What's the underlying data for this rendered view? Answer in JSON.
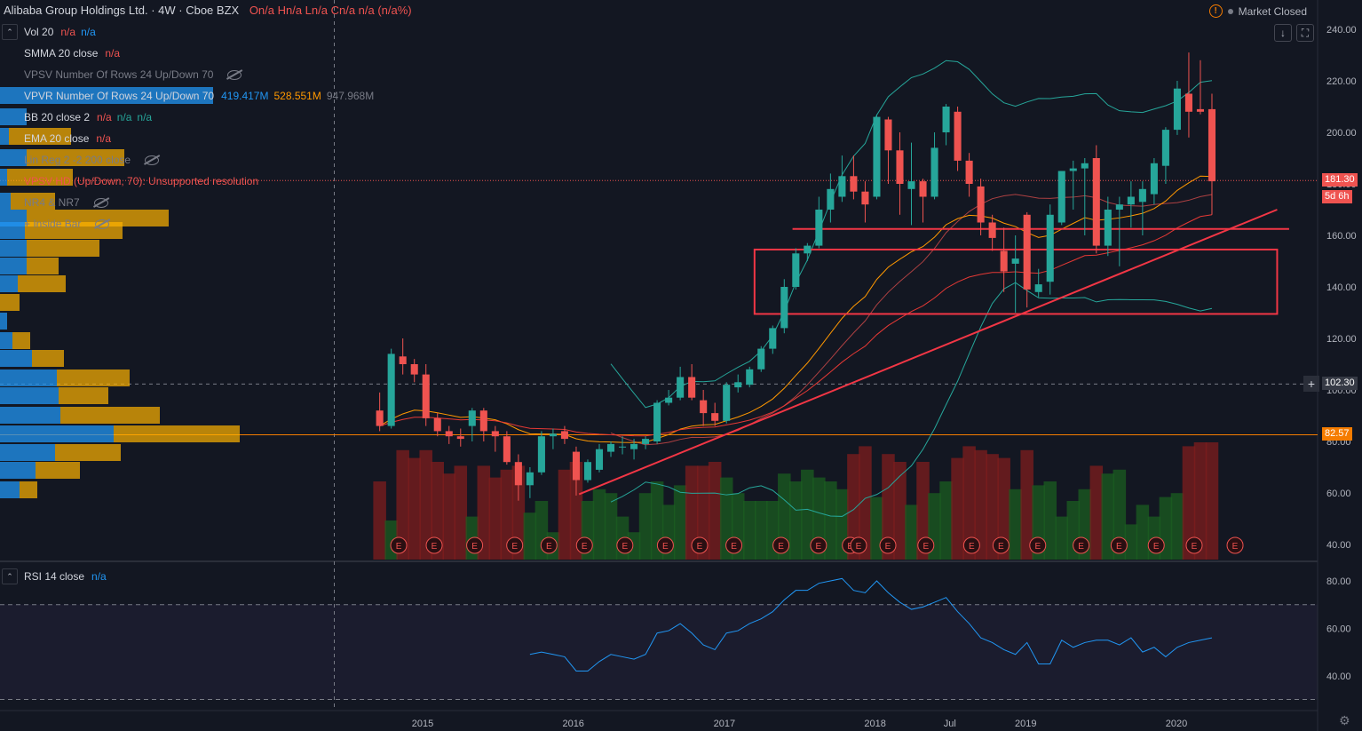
{
  "header": {
    "title": "Alibaba Group Holdings Ltd. · 4W · Cboe BZX",
    "ohlc": "On/a Hn/a Ln/a Cn/a n/a (n/a%)",
    "market_status": "Market Closed"
  },
  "indicators": [
    {
      "name": "Vol 20",
      "values": [
        "n/a",
        "n/a"
      ],
      "colors": [
        "#ef5350",
        "#2196f3"
      ],
      "dim": false,
      "hidden": false
    },
    {
      "name": "SMMA 20 close",
      "values": [
        "n/a"
      ],
      "colors": [
        "#ef5350"
      ],
      "dim": false,
      "hidden": false
    },
    {
      "name": "VPSV Number Of Rows 24 Up/Down 70",
      "values": [],
      "colors": [],
      "dim": true,
      "hidden": true
    },
    {
      "name": "VPVR Number Of Rows 24 Up/Down 70",
      "values": [
        "419.417M",
        "528.551M",
        "947.968M"
      ],
      "colors": [
        "#2196f3",
        "#ff9800",
        "#787b86"
      ],
      "dim": false,
      "hidden": false
    },
    {
      "name": "BB 20 close 2",
      "values": [
        "n/a",
        "n/a",
        "n/a"
      ],
      "colors": [
        "#ef5350",
        "#26a69a",
        "#26a69a"
      ],
      "dim": false,
      "hidden": false
    },
    {
      "name": "EMA 20 close",
      "values": [
        "n/a"
      ],
      "colors": [
        "#ef5350"
      ],
      "dim": false,
      "hidden": false
    },
    {
      "name": "Lin Reg 2 -2 200 close",
      "values": [],
      "colors": [],
      "dim": true,
      "hidden": true
    },
    {
      "name": "VPSV HD (Up/Down, 70): Unsupported resolution",
      "values": [],
      "colors": [],
      "dim": false,
      "error": true,
      "hidden": false
    },
    {
      "name": "NR4 & NR7",
      "values": [],
      "colors": [],
      "dim": true,
      "hidden": true
    },
    {
      "name": "+ Inside Bar",
      "values": [],
      "colors": [],
      "dim": true,
      "hidden": true
    }
  ],
  "rsi_legend": {
    "name": "RSI 14 close",
    "value": "n/a"
  },
  "price_labels": {
    "last": "181.30",
    "countdown": "5d 6h",
    "crosshair": "102.30",
    "level": "82.57"
  },
  "earnings_marker": "E",
  "colors": {
    "up": "#26a69a",
    "down": "#ef5350",
    "background": "#131722",
    "rsi": "#2196f3",
    "accent": "#2962ff"
  },
  "chart_data": [
    {
      "type": "candlestick",
      "title": "Alibaba Group Holdings Ltd. · 4W · Cboe BZX",
      "x_ticks": [
        "2015",
        "2016",
        "2017",
        "2018",
        "Jul",
        "2019",
        "2020"
      ],
      "x_tick_dates": [
        "2015-01-01",
        "2016-01-01",
        "2017-01-01",
        "2018-01-01",
        "2018-07-01",
        "2019-01-01",
        "2020-01-01"
      ],
      "y_ticks": [
        40,
        60,
        80,
        100,
        120,
        140,
        160,
        180,
        200,
        220,
        240
      ],
      "ylim": [
        35,
        248
      ],
      "candles": [
        {
          "d": "2014-09-19",
          "o": 92,
          "h": 99,
          "l": 84,
          "c": 86
        },
        {
          "d": "2014-10-17",
          "o": 86,
          "h": 116,
          "l": 85,
          "c": 114
        },
        {
          "d": "2014-11-14",
          "o": 113,
          "h": 120,
          "l": 106,
          "c": 110
        },
        {
          "d": "2014-12-12",
          "o": 110,
          "h": 112,
          "l": 103,
          "c": 106
        },
        {
          "d": "2015-01-09",
          "o": 106,
          "h": 110,
          "l": 86,
          "c": 89
        },
        {
          "d": "2015-02-06",
          "o": 89,
          "h": 91,
          "l": 82,
          "c": 84
        },
        {
          "d": "2015-03-06",
          "o": 84,
          "h": 86,
          "l": 79,
          "c": 82
        },
        {
          "d": "2015-04-03",
          "o": 82,
          "h": 85,
          "l": 78,
          "c": 81
        },
        {
          "d": "2015-05-01",
          "o": 86,
          "h": 93,
          "l": 80,
          "c": 92
        },
        {
          "d": "2015-05-29",
          "o": 92,
          "h": 93,
          "l": 80,
          "c": 84
        },
        {
          "d": "2015-06-26",
          "o": 84,
          "h": 86,
          "l": 76,
          "c": 82
        },
        {
          "d": "2015-07-24",
          "o": 82,
          "h": 84,
          "l": 71,
          "c": 72
        },
        {
          "d": "2015-08-21",
          "o": 72,
          "h": 75,
          "l": 57,
          "c": 63
        },
        {
          "d": "2015-09-18",
          "o": 63,
          "h": 70,
          "l": 58,
          "c": 68
        },
        {
          "d": "2015-10-16",
          "o": 68,
          "h": 84,
          "l": 67,
          "c": 82
        },
        {
          "d": "2015-11-13",
          "o": 82,
          "h": 85,
          "l": 77,
          "c": 83
        },
        {
          "d": "2015-12-11",
          "o": 84,
          "h": 86,
          "l": 79,
          "c": 81
        },
        {
          "d": "2016-01-08",
          "o": 76,
          "h": 78,
          "l": 59,
          "c": 65
        },
        {
          "d": "2016-02-05",
          "o": 65,
          "h": 73,
          "l": 64,
          "c": 72
        },
        {
          "d": "2016-03-04",
          "o": 69,
          "h": 79,
          "l": 68,
          "c": 77
        },
        {
          "d": "2016-04-01",
          "o": 76,
          "h": 80,
          "l": 74,
          "c": 79
        },
        {
          "d": "2016-04-29",
          "o": 78,
          "h": 82,
          "l": 75,
          "c": 78
        },
        {
          "d": "2016-05-27",
          "o": 77,
          "h": 81,
          "l": 73,
          "c": 79
        },
        {
          "d": "2016-06-24",
          "o": 79,
          "h": 82,
          "l": 77,
          "c": 81
        },
        {
          "d": "2016-07-22",
          "o": 80,
          "h": 96,
          "l": 79,
          "c": 95
        },
        {
          "d": "2016-08-19",
          "o": 95,
          "h": 100,
          "l": 94,
          "c": 97
        },
        {
          "d": "2016-09-16",
          "o": 97,
          "h": 109,
          "l": 96,
          "c": 105
        },
        {
          "d": "2016-10-14",
          "o": 105,
          "h": 110,
          "l": 96,
          "c": 97
        },
        {
          "d": "2016-11-11",
          "o": 96,
          "h": 100,
          "l": 86,
          "c": 91
        },
        {
          "d": "2016-12-09",
          "o": 91,
          "h": 95,
          "l": 86,
          "c": 88
        },
        {
          "d": "2017-01-06",
          "o": 88,
          "h": 103,
          "l": 87,
          "c": 102
        },
        {
          "d": "2017-02-03",
          "o": 101,
          "h": 106,
          "l": 99,
          "c": 103
        },
        {
          "d": "2017-03-03",
          "o": 102,
          "h": 109,
          "l": 101,
          "c": 108
        },
        {
          "d": "2017-03-31",
          "o": 108,
          "h": 117,
          "l": 107,
          "c": 116
        },
        {
          "d": "2017-04-28",
          "o": 116,
          "h": 125,
          "l": 114,
          "c": 124
        },
        {
          "d": "2017-05-26",
          "o": 124,
          "h": 143,
          "l": 122,
          "c": 140
        },
        {
          "d": "2017-06-23",
          "o": 140,
          "h": 155,
          "l": 139,
          "c": 153
        },
        {
          "d": "2017-07-21",
          "o": 153,
          "h": 157,
          "l": 150,
          "c": 156
        },
        {
          "d": "2017-08-18",
          "o": 156,
          "h": 175,
          "l": 155,
          "c": 170
        },
        {
          "d": "2017-09-15",
          "o": 170,
          "h": 184,
          "l": 165,
          "c": 178
        },
        {
          "d": "2017-10-13",
          "o": 175,
          "h": 191,
          "l": 173,
          "c": 183
        },
        {
          "d": "2017-11-10",
          "o": 183,
          "h": 191,
          "l": 174,
          "c": 177
        },
        {
          "d": "2017-12-08",
          "o": 177,
          "h": 181,
          "l": 165,
          "c": 172
        },
        {
          "d": "2018-01-05",
          "o": 175,
          "h": 207,
          "l": 174,
          "c": 206
        },
        {
          "d": "2018-02-02",
          "o": 205,
          "h": 206,
          "l": 180,
          "c": 193
        },
        {
          "d": "2018-03-02",
          "o": 193,
          "h": 200,
          "l": 168,
          "c": 180
        },
        {
          "d": "2018-03-30",
          "o": 178,
          "h": 196,
          "l": 164,
          "c": 181
        },
        {
          "d": "2018-04-27",
          "o": 181,
          "h": 182,
          "l": 165,
          "c": 175
        },
        {
          "d": "2018-05-25",
          "o": 175,
          "h": 200,
          "l": 174,
          "c": 194
        },
        {
          "d": "2018-06-22",
          "o": 200,
          "h": 211,
          "l": 195,
          "c": 210
        },
        {
          "d": "2018-07-20",
          "o": 208,
          "h": 210,
          "l": 185,
          "c": 189
        },
        {
          "d": "2018-08-17",
          "o": 189,
          "h": 192,
          "l": 175,
          "c": 180
        },
        {
          "d": "2018-09-14",
          "o": 179,
          "h": 182,
          "l": 160,
          "c": 165
        },
        {
          "d": "2018-10-12",
          "o": 165,
          "h": 168,
          "l": 154,
          "c": 159
        },
        {
          "d": "2018-11-09",
          "o": 154,
          "h": 163,
          "l": 138,
          "c": 146
        },
        {
          "d": "2018-12-07",
          "o": 149,
          "h": 160,
          "l": 130,
          "c": 151
        },
        {
          "d": "2019-01-04",
          "o": 168,
          "h": 169,
          "l": 132,
          "c": 139
        },
        {
          "d": "2019-02-01",
          "o": 138,
          "h": 147,
          "l": 136,
          "c": 141
        },
        {
          "d": "2019-03-01",
          "o": 142,
          "h": 172,
          "l": 137,
          "c": 168
        },
        {
          "d": "2019-03-29",
          "o": 165,
          "h": 185,
          "l": 164,
          "c": 185
        },
        {
          "d": "2019-04-26",
          "o": 185,
          "h": 189,
          "l": 170,
          "c": 186
        },
        {
          "d": "2019-05-24",
          "o": 186,
          "h": 190,
          "l": 160,
          "c": 188
        },
        {
          "d": "2019-06-21",
          "o": 190,
          "h": 195,
          "l": 153,
          "c": 156
        },
        {
          "d": "2019-07-19",
          "o": 156,
          "h": 175,
          "l": 152,
          "c": 170
        },
        {
          "d": "2019-08-16",
          "o": 170,
          "h": 175,
          "l": 148,
          "c": 172
        },
        {
          "d": "2019-09-13",
          "o": 172,
          "h": 181,
          "l": 163,
          "c": 175
        },
        {
          "d": "2019-10-11",
          "o": 173,
          "h": 181,
          "l": 160,
          "c": 178
        },
        {
          "d": "2019-11-08",
          "o": 176,
          "h": 190,
          "l": 172,
          "c": 188
        },
        {
          "d": "2019-12-06",
          "o": 187,
          "h": 202,
          "l": 180,
          "c": 201
        },
        {
          "d": "2020-01-03",
          "o": 201,
          "h": 220,
          "l": 199,
          "c": 217
        },
        {
          "d": "2020-01-31",
          "o": 215,
          "h": 231,
          "l": 198,
          "c": 208
        },
        {
          "d": "2020-02-28",
          "o": 209,
          "h": 228,
          "l": 207,
          "c": 208
        },
        {
          "d": "2020-03-27",
          "o": 209,
          "h": 215,
          "l": 168,
          "c": 181
        }
      ],
      "volume_up": [
        45,
        20,
        38,
        18,
        20,
        20,
        30,
        16,
        22,
        14,
        20,
        16,
        30,
        24,
        30,
        14,
        12,
        34,
        30,
        36,
        34,
        22,
        14,
        34,
        40,
        28,
        38,
        26,
        32,
        16,
        42,
        34,
        30,
        30,
        30,
        44,
        40,
        46,
        42,
        40,
        36,
        30,
        44,
        32,
        24,
        36,
        28,
        30,
        34,
        40,
        26,
        18,
        34,
        22,
        30,
        36,
        20,
        38,
        40,
        22,
        30,
        36,
        30,
        44,
        46,
        18,
        28,
        22,
        32,
        34,
        30,
        28,
        28
      ],
      "volume_down": [
        40,
        50,
        56,
        52,
        56,
        50,
        44,
        48,
        50,
        48,
        42,
        46,
        48,
        42,
        48,
        44,
        46,
        50,
        44,
        44,
        46,
        48,
        50,
        52,
        48,
        48,
        50,
        48,
        48,
        50,
        52,
        48,
        50,
        48,
        48,
        50,
        52,
        56,
        54,
        50,
        52,
        54,
        58,
        56,
        54,
        50,
        48,
        50,
        52,
        56,
        52,
        58,
        56,
        54,
        52,
        52,
        56,
        58,
        50,
        52,
        50,
        48,
        48,
        50,
        52,
        54,
        52,
        52,
        54,
        56,
        58,
        60,
        60
      ],
      "earnings": [
        "2014-11-04",
        "2015-01-29",
        "2015-05-07",
        "2015-08-12",
        "2015-11-03",
        "2016-01-28",
        "2016-05-05",
        "2016-08-11",
        "2016-11-02",
        "2017-01-24",
        "2017-05-18",
        "2017-08-17",
        "2017-11-02",
        "2017-11-22",
        "2018-02-01",
        "2018-05-04",
        "2018-08-23",
        "2018-11-02",
        "2019-01-30",
        "2019-05-15",
        "2019-08-15",
        "2019-11-13",
        "2020-02-13",
        "2020-05-22"
      ],
      "horizontal_lines": [
        {
          "y": 162.5,
          "from": "2017-06-15",
          "to": "2020-09-30"
        }
      ],
      "trend_lines": [
        {
          "from": [
            "2016-01-15",
            59.5
          ],
          "to": [
            "2020-09-01",
            170
          ]
        }
      ],
      "rectangles": [
        {
          "x0": "2017-03-15",
          "x1": "2020-09-01",
          "y0": 129.5,
          "y1": 154.5
        }
      ],
      "crosshair": {
        "date": "2014-06-01",
        "price": 102.3
      },
      "level_line": 82.57,
      "last_price": 181.3
    },
    {
      "type": "line",
      "title": "RSI 14 close",
      "y_ticks": [
        40,
        60,
        80
      ],
      "ylim": [
        25,
        90
      ],
      "bands": [
        30,
        70
      ],
      "x": [
        "2015-09-18",
        "2015-10-16",
        "2015-11-13",
        "2015-12-11",
        "2016-01-08",
        "2016-02-05",
        "2016-03-04",
        "2016-04-01",
        "2016-04-29",
        "2016-05-27",
        "2016-06-24",
        "2016-07-22",
        "2016-08-19",
        "2016-09-16",
        "2016-10-14",
        "2016-11-11",
        "2016-12-09",
        "2017-01-06",
        "2017-02-03",
        "2017-03-03",
        "2017-03-31",
        "2017-04-28",
        "2017-05-26",
        "2017-06-23",
        "2017-07-21",
        "2017-08-18",
        "2017-09-15",
        "2017-10-13",
        "2017-11-10",
        "2017-12-08",
        "2018-01-05",
        "2018-02-02",
        "2018-03-02",
        "2018-03-30",
        "2018-04-27",
        "2018-05-25",
        "2018-06-22",
        "2018-07-20",
        "2018-08-17",
        "2018-09-14",
        "2018-10-12",
        "2018-11-09",
        "2018-12-07",
        "2019-01-04",
        "2019-02-01",
        "2019-03-01",
        "2019-03-29",
        "2019-04-26",
        "2019-05-24",
        "2019-06-21",
        "2019-07-19",
        "2019-08-16",
        "2019-09-13",
        "2019-10-11",
        "2019-11-08",
        "2019-12-06",
        "2020-01-03",
        "2020-01-31",
        "2020-02-28",
        "2020-03-27"
      ],
      "values": [
        49,
        50,
        49,
        48,
        42,
        42,
        46,
        49,
        48,
        47,
        49,
        58,
        59,
        62,
        58,
        53,
        51,
        58,
        59,
        62,
        64,
        67,
        72,
        76,
        76,
        79,
        80,
        81,
        76,
        75,
        80,
        75,
        71,
        68,
        69,
        71,
        73,
        67,
        62,
        56,
        54,
        51,
        49,
        54,
        45,
        45,
        55,
        52,
        54,
        55,
        55,
        53,
        56,
        50,
        52,
        48,
        52,
        54,
        55,
        56
      ]
    }
  ]
}
